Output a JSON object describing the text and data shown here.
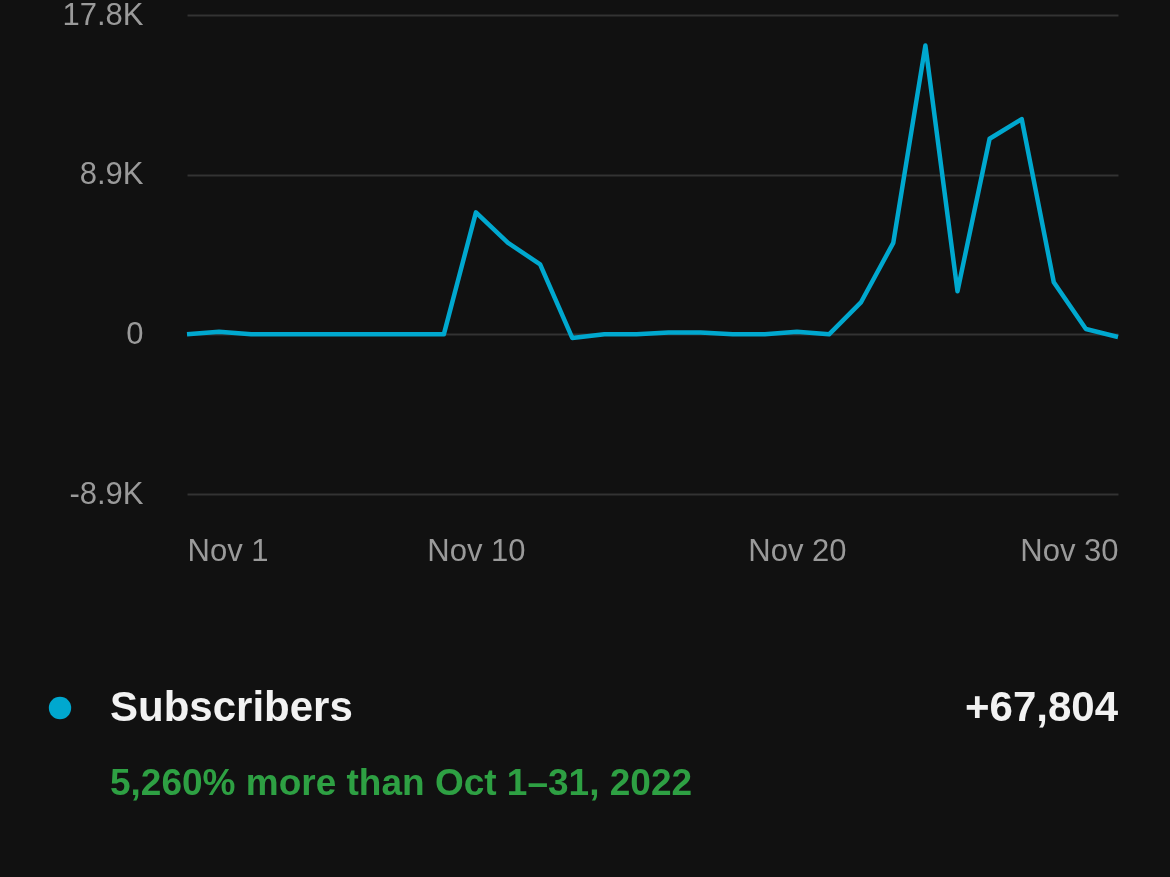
{
  "chart_data": {
    "type": "line",
    "x": [
      "2022-11-01",
      "2022-11-02",
      "2022-11-03",
      "2022-11-04",
      "2022-11-05",
      "2022-11-06",
      "2022-11-07",
      "2022-11-08",
      "2022-11-09",
      "2022-11-10",
      "2022-11-11",
      "2022-11-12",
      "2022-11-13",
      "2022-11-14",
      "2022-11-15",
      "2022-11-16",
      "2022-11-17",
      "2022-11-18",
      "2022-11-19",
      "2022-11-20",
      "2022-11-21",
      "2022-11-22",
      "2022-11-23",
      "2022-11-24",
      "2022-11-25",
      "2022-11-26",
      "2022-11-27",
      "2022-11-28",
      "2022-11-29",
      "2022-11-30"
    ],
    "series": [
      {
        "name": "Subscribers",
        "color": "#00a8cf",
        "values": [
          0,
          150,
          0,
          0,
          0,
          0,
          0,
          0,
          0,
          6800,
          5100,
          3900,
          -200,
          0,
          0,
          100,
          100,
          0,
          0,
          150,
          0,
          1800,
          5100,
          16100,
          2400,
          10900,
          12000,
          2900,
          300,
          -150
        ]
      }
    ],
    "xlim": [
      "2022-11-01",
      "2022-11-30"
    ],
    "xticks": [
      {
        "value": "2022-11-01",
        "label": "Nov 1"
      },
      {
        "value": "2022-11-10",
        "label": "Nov 10"
      },
      {
        "value": "2022-11-20",
        "label": "Nov 20"
      },
      {
        "value": "2022-11-30",
        "label": "Nov 30"
      }
    ],
    "ylim": [
      -8900,
      17800
    ],
    "yticks": [
      {
        "value": -8900,
        "label": "-8.9K"
      },
      {
        "value": 0,
        "label": "0"
      },
      {
        "value": 8900,
        "label": "8.9K"
      },
      {
        "value": 17800,
        "label": "17.8K"
      }
    ],
    "grid": "y",
    "legend": "bottom",
    "marker": "none",
    "line_style": "solid",
    "annotations": [
      "+67,804",
      "5,260% more than Oct 1–31, 2022"
    ]
  }
}
